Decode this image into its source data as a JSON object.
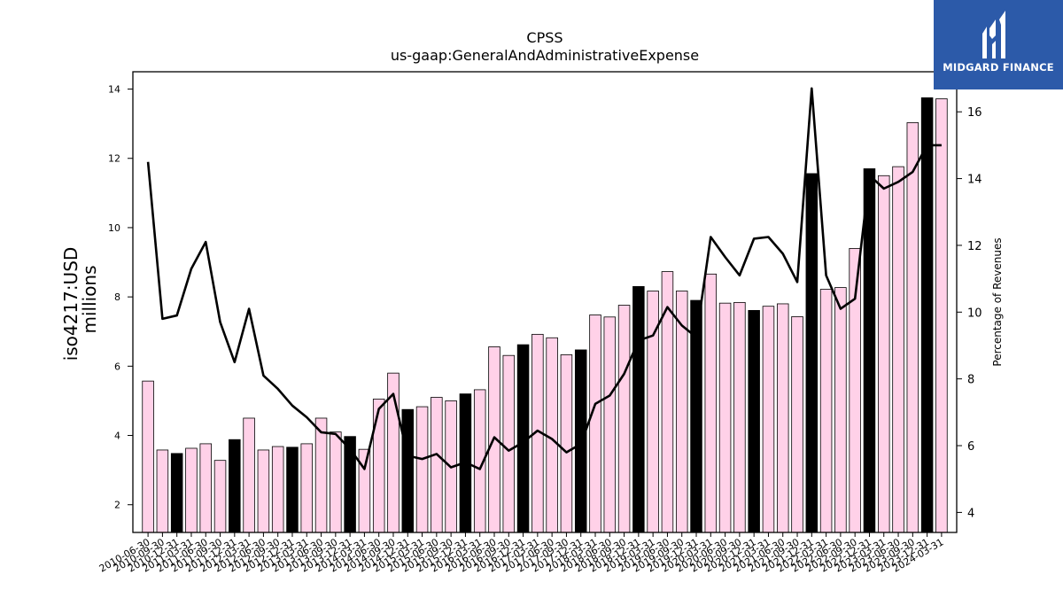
{
  "chart_data": {
    "type": "bar",
    "title": "CPSS",
    "subtitle": "us-gaap:GeneralAndAdministrativeExpense",
    "ylabel": "iso4217:USD",
    "ylabel_unit": "millions",
    "y2label": "Percentage of Revenues",
    "ylim": [
      1.2,
      14.5
    ],
    "y2lim": [
      3.4,
      17.2
    ],
    "yticks": [
      2,
      4,
      6,
      8,
      10,
      12,
      14
    ],
    "y2ticks": [
      4,
      6,
      8,
      10,
      12,
      14,
      16
    ],
    "grid": false,
    "colors": {
      "bar": "#ffd1e8",
      "bar_highlight": "#000000",
      "bar_edge": "#000000",
      "line": "#000000"
    },
    "categories": [
      "2010-06-30",
      "2010-09-30",
      "2010-12-31",
      "2011-03-31",
      "2011-06-30",
      "2011-09-30",
      "2011-12-31",
      "2012-03-31",
      "2012-06-30",
      "2012-09-30",
      "2012-12-31",
      "2013-03-31",
      "2013-06-30",
      "2013-09-30",
      "2013-12-31",
      "2014-03-31",
      "2014-06-30",
      "2014-09-30",
      "2014-12-31",
      "2015-03-31",
      "2015-06-30",
      "2015-09-30",
      "2015-12-31",
      "2016-03-31",
      "2016-06-30",
      "2016-09-30",
      "2016-12-31",
      "2017-03-31",
      "2017-06-30",
      "2017-09-30",
      "2017-12-31",
      "2018-03-31",
      "2018-06-30",
      "2018-09-30",
      "2018-12-31",
      "2019-03-31",
      "2019-06-30",
      "2019-09-30",
      "2019-12-31",
      "2020-03-31",
      "2020-06-30",
      "2020-09-30",
      "2020-12-31",
      "2021-03-31",
      "2021-06-30",
      "2021-09-30",
      "2021-12-31",
      "2022-03-31",
      "2022-06-30",
      "2022-09-30",
      "2022-12-31",
      "2023-03-31",
      "2023-06-30",
      "2023-09-30",
      "2023-12-31",
      "2024-03-31"
    ],
    "series": [
      {
        "values": [
          5.57,
          3.58,
          3.48,
          3.63,
          3.76,
          3.28,
          3.88,
          4.5,
          3.58,
          3.68,
          3.66,
          3.76,
          4.5,
          4.1,
          3.97,
          3.6,
          5.05,
          5.8,
          4.75,
          4.83,
          5.1,
          5.0,
          5.2,
          5.32,
          6.56,
          6.31,
          6.62,
          6.92,
          6.82,
          6.33,
          6.47,
          7.48,
          7.42,
          7.76,
          8.3,
          8.17,
          8.73,
          8.17,
          7.9,
          8.66,
          7.82,
          7.84,
          7.61,
          7.73,
          7.8,
          7.43,
          11.56,
          8.22,
          8.27,
          9.4,
          11.7,
          11.5,
          11.76,
          13.03,
          13.75,
          13.72
        ]
      },
      {
        "name": "Percentage of Revenues",
        "values": [
          14.5,
          9.8,
          9.9,
          11.3,
          12.1,
          9.7,
          8.5,
          10.1,
          8.1,
          7.7,
          7.2,
          6.85,
          6.4,
          6.35,
          5.9,
          5.3,
          7.1,
          7.55,
          5.7,
          5.6,
          5.75,
          5.35,
          5.5,
          5.3,
          6.25,
          5.85,
          6.1,
          6.45,
          6.2,
          5.8,
          6.05,
          7.25,
          7.5,
          8.15,
          9.15,
          9.3,
          10.15,
          9.6,
          9.25,
          12.25,
          11.65,
          11.1,
          12.2,
          12.25,
          11.75,
          10.9,
          16.7,
          11.1,
          10.1,
          10.4,
          14.1,
          13.7,
          13.9,
          14.2,
          15.0,
          15.0
        ]
      }
    ],
    "highlight_indices": [
      2,
      6,
      10,
      14,
      18,
      22,
      26,
      30,
      34,
      38,
      42,
      46,
      50,
      54
    ]
  },
  "logo": {
    "text": "MIDGARD FINANCE"
  }
}
